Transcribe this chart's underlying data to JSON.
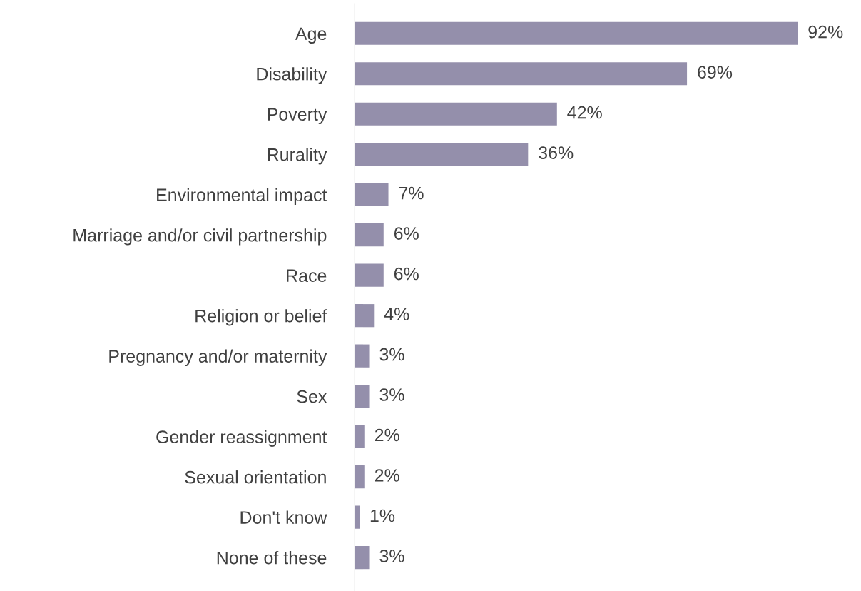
{
  "chart_data": {
    "type": "bar",
    "orientation": "horizontal",
    "categories": [
      "Age",
      "Disability",
      "Poverty",
      "Rurality",
      "Environmental impact",
      "Marriage and/or civil partnership",
      "Race",
      "Religion or belief",
      "Pregnancy and/or maternity",
      "Sex",
      "Gender reassignment",
      "Sexual orientation",
      "Don't know",
      "None of these"
    ],
    "values": [
      92,
      69,
      42,
      36,
      7,
      6,
      6,
      4,
      3,
      3,
      2,
      2,
      1,
      3
    ],
    "value_labels": [
      "92%",
      "69%",
      "42%",
      "36%",
      "7%",
      "6%",
      "6%",
      "4%",
      "3%",
      "3%",
      "2%",
      "2%",
      "1%",
      "3%"
    ],
    "color": "#948fab",
    "tick_labels": "y",
    "grid": false,
    "legend": false
  }
}
